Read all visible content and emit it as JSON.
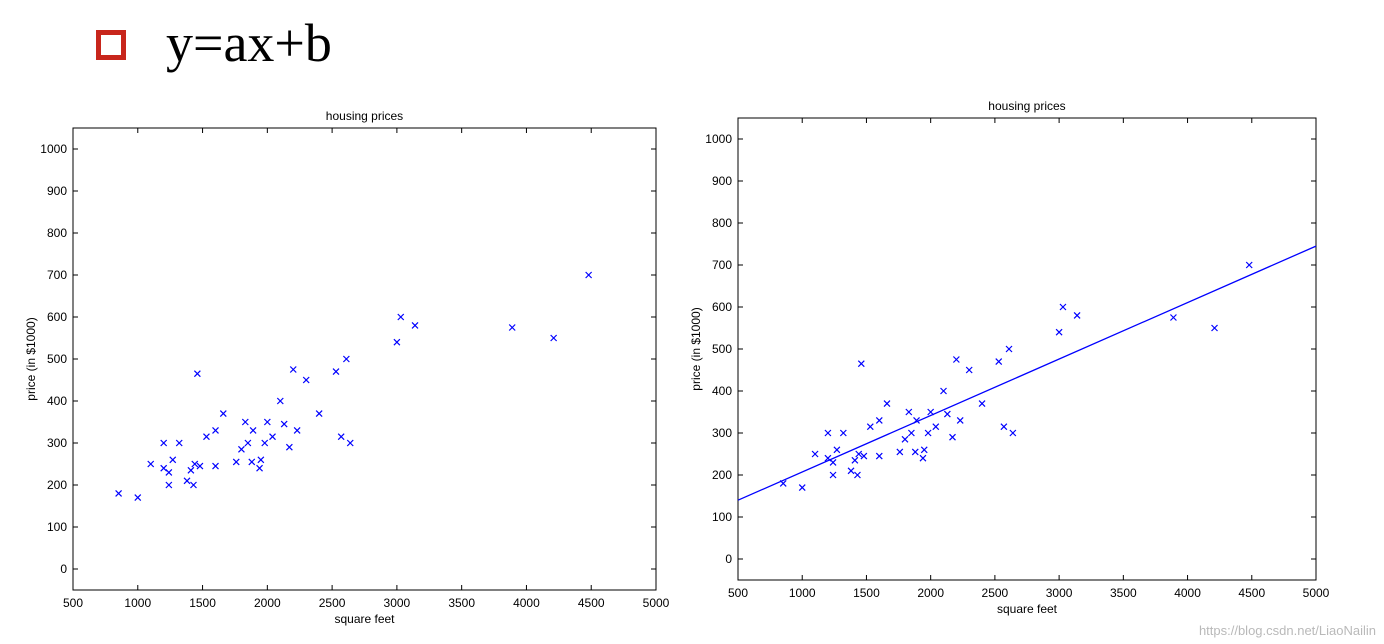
{
  "header": {
    "bullet_icon": "hollow-square-bullet-icon",
    "bullet_color": "#c8261c",
    "formula": "y=ax+b"
  },
  "watermark": "https://blog.csdn.net/LiaoNailin",
  "chart_data": [
    {
      "type": "scatter",
      "title": "housing prices",
      "xlabel": "square feet",
      "ylabel": "price (in $1000)",
      "xlim": [
        500,
        5000
      ],
      "ylim": [
        -50,
        1050
      ],
      "xticks": [
        500,
        1000,
        1500,
        2000,
        2500,
        3000,
        3500,
        4000,
        4500,
        5000
      ],
      "yticks": [
        0,
        100,
        200,
        300,
        400,
        500,
        600,
        700,
        800,
        900,
        1000
      ],
      "grid": false,
      "marker": "x",
      "marker_color": "#0000ff",
      "series": [
        {
          "x": [
            852,
            1000,
            1100,
            1200,
            1200,
            1240,
            1240,
            1270,
            1320,
            1380,
            1410,
            1430,
            1440,
            1460,
            1480,
            1530,
            1600,
            1600,
            1660,
            1760,
            1800,
            1830,
            1850,
            1880,
            1890,
            1940,
            1950,
            1980,
            2000,
            2040,
            2100,
            2130,
            2170,
            2200,
            2230,
            2300,
            2400,
            2530,
            2570,
            2610,
            2640,
            3000,
            3030,
            3140,
            3890,
            4210,
            4480
          ],
          "y": [
            180,
            170,
            250,
            240,
            300,
            230,
            200,
            260,
            300,
            210,
            235,
            200,
            250,
            465,
            245,
            315,
            330,
            245,
            370,
            255,
            285,
            350,
            300,
            255,
            330,
            240,
            260,
            300,
            350,
            315,
            400,
            345,
            290,
            475,
            330,
            450,
            370,
            470,
            315,
            500,
            300,
            540,
            600,
            580,
            575,
            550,
            700
          ]
        }
      ]
    },
    {
      "type": "scatter",
      "title": "housing prices",
      "xlabel": "square feet",
      "ylabel": "price (in $1000)",
      "xlim": [
        500,
        5000
      ],
      "ylim": [
        -50,
        1050
      ],
      "xticks": [
        500,
        1000,
        1500,
        2000,
        2500,
        3000,
        3500,
        4000,
        4500,
        5000
      ],
      "yticks": [
        0,
        100,
        200,
        300,
        400,
        500,
        600,
        700,
        800,
        900,
        1000
      ],
      "grid": false,
      "marker": "x",
      "marker_color": "#0000ff",
      "series": [
        {
          "x": [
            852,
            1000,
            1100,
            1200,
            1200,
            1240,
            1240,
            1270,
            1320,
            1380,
            1410,
            1430,
            1440,
            1460,
            1480,
            1530,
            1600,
            1600,
            1660,
            1760,
            1800,
            1830,
            1850,
            1880,
            1890,
            1940,
            1950,
            1980,
            2000,
            2040,
            2100,
            2130,
            2170,
            2200,
            2230,
            2300,
            2400,
            2530,
            2570,
            2610,
            2640,
            3000,
            3030,
            3140,
            3890,
            4210,
            4480
          ],
          "y": [
            180,
            170,
            250,
            240,
            300,
            230,
            200,
            260,
            300,
            210,
            235,
            200,
            250,
            465,
            245,
            315,
            330,
            245,
            370,
            255,
            285,
            350,
            300,
            255,
            330,
            240,
            260,
            300,
            350,
            315,
            400,
            345,
            290,
            475,
            330,
            450,
            370,
            470,
            315,
            500,
            300,
            540,
            600,
            580,
            575,
            550,
            700
          ]
        }
      ],
      "fit_line": {
        "x": [
          500,
          5000
        ],
        "y": [
          140,
          745
        ],
        "color": "#0000ff"
      }
    }
  ]
}
